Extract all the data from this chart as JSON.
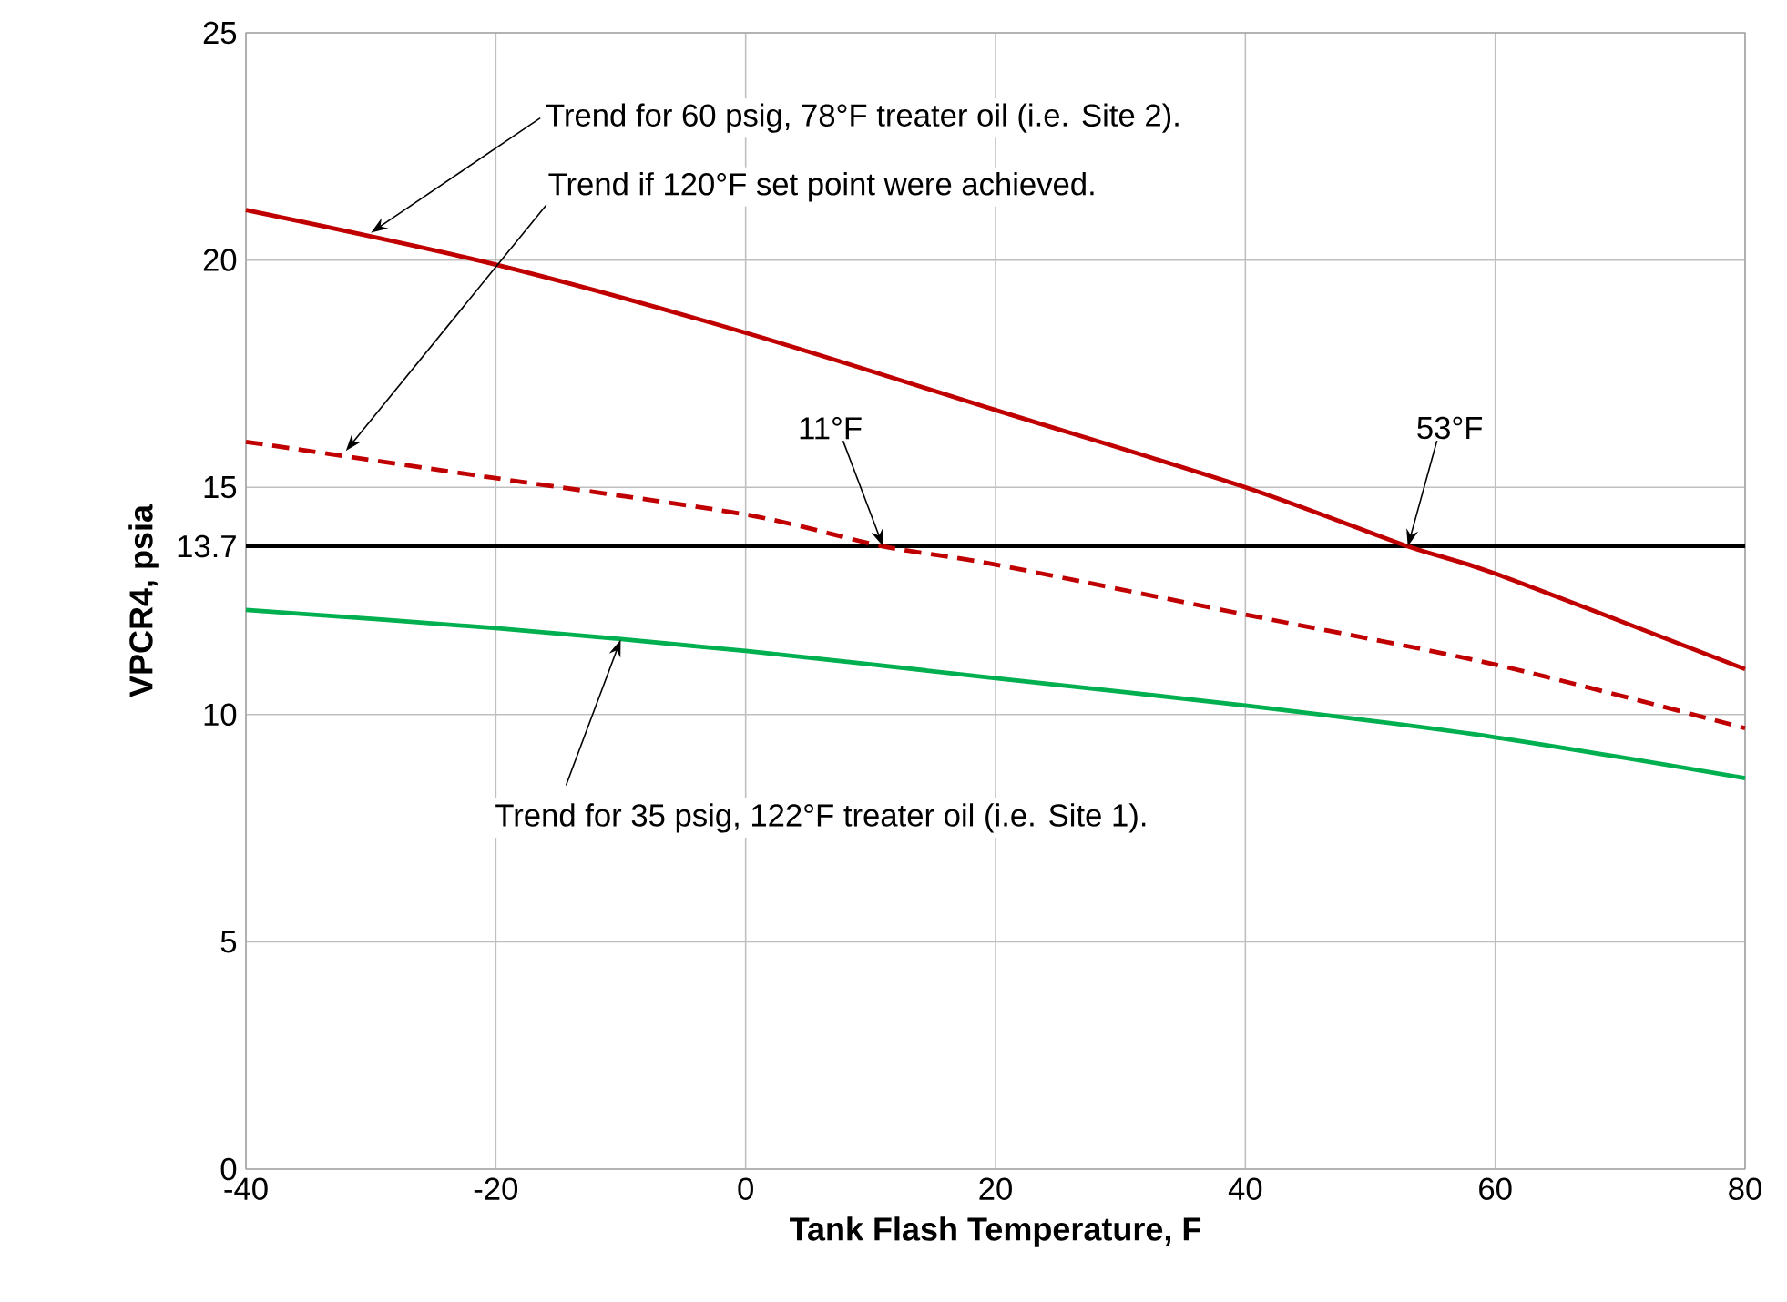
{
  "chart_data": {
    "type": "line",
    "xlabel": "Tank Flash Temperature, F",
    "ylabel": "VPCR4, psia",
    "x": [
      -40,
      -20,
      0,
      20,
      40,
      53,
      60,
      80
    ],
    "series": [
      {
        "color": "#c00000",
        "line_style": "solid",
        "values": [
          21.1,
          19.9,
          18.4,
          16.7,
          15.0,
          13.7,
          13.1,
          11.0
        ]
      },
      {
        "color": "#c00000",
        "line_style": "dashed",
        "x": [
          -40,
          -20,
          0,
          11,
          20,
          40,
          60,
          80
        ],
        "values": [
          16.0,
          15.2,
          14.4,
          13.7,
          13.3,
          12.2,
          11.1,
          9.7
        ]
      },
      {
        "color": "#00b050",
        "line_style": "solid",
        "x": [
          -40,
          -20,
          0,
          20,
          40,
          60,
          80
        ],
        "values": [
          12.3,
          11.9,
          11.4,
          10.8,
          10.2,
          9.5,
          8.6
        ]
      }
    ],
    "xlim": [
      -40,
      80
    ],
    "xticks": [
      -40,
      -20,
      0,
      20,
      40,
      60,
      80
    ],
    "ylim": [
      0,
      25
    ],
    "yticks": [
      0,
      5,
      10,
      13.7,
      15,
      20,
      25
    ],
    "grid": true,
    "ref_lines": [
      {
        "axis": "y",
        "value": 13.7,
        "color": "#000000"
      }
    ],
    "annotations": [
      {
        "text": "Trend for 60 psig, 78°F treater oil (i.e. Site 2).",
        "x": -30,
        "y": 20.6
      },
      {
        "text": "Trend if 120°F set point were achieved.",
        "x": -32,
        "y": 15.8
      },
      {
        "text": "11°F",
        "x": 11,
        "y": 13.7
      },
      {
        "text": "53°F",
        "x": 53,
        "y": 13.7
      },
      {
        "text": "Trend for 35 psig, 122°F treater oil (i.e. Site 1).",
        "x": -10,
        "y": 11.65
      }
    ]
  }
}
